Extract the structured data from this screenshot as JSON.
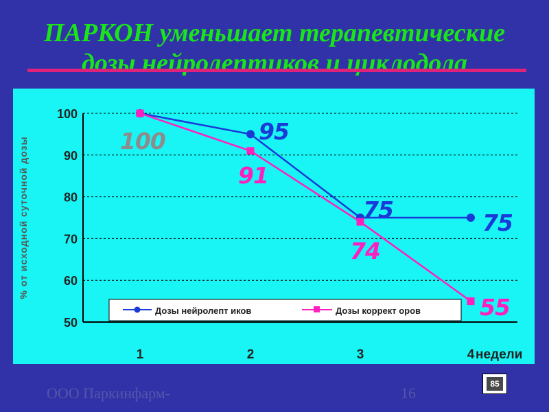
{
  "slide": {
    "title_line1": "ПАРКОН уменьшает терапевтические",
    "title_line2": "дозы нейролептиков и циклодола",
    "footer_company": "ООО Паркинфарм-",
    "page_number": "16",
    "badge": "85"
  },
  "colors": {
    "background": "#3232a8",
    "title": "#19e619",
    "rule": "#e0227a",
    "panel": "#19f5f5",
    "series_1": "#1a3ad8",
    "series_2": "#ff1fbf"
  },
  "chart_data": {
    "type": "line",
    "ylabel": "% от исходной суточной дозы",
    "xlabel": "недели",
    "x": [
      1,
      2,
      3,
      4
    ],
    "x_tick_labels": [
      "1",
      "2",
      "3",
      "4"
    ],
    "ylim": [
      50,
      100
    ],
    "y_ticks": [
      100,
      90,
      80,
      70,
      60,
      50
    ],
    "grid": true,
    "legend_position": "bottom",
    "series": [
      {
        "name": "Дозы нейролепт иков",
        "values": [
          100,
          95,
          75,
          75
        ],
        "labels": [
          "100",
          "95",
          "75",
          "75"
        ],
        "color": "#1a3ad8",
        "marker": "circle"
      },
      {
        "name": "Дозы коррект оров",
        "values": [
          100,
          91,
          74,
          55
        ],
        "labels": [
          "",
          "91",
          "74",
          "55"
        ],
        "color": "#ff1fbf",
        "marker": "square"
      }
    ]
  }
}
